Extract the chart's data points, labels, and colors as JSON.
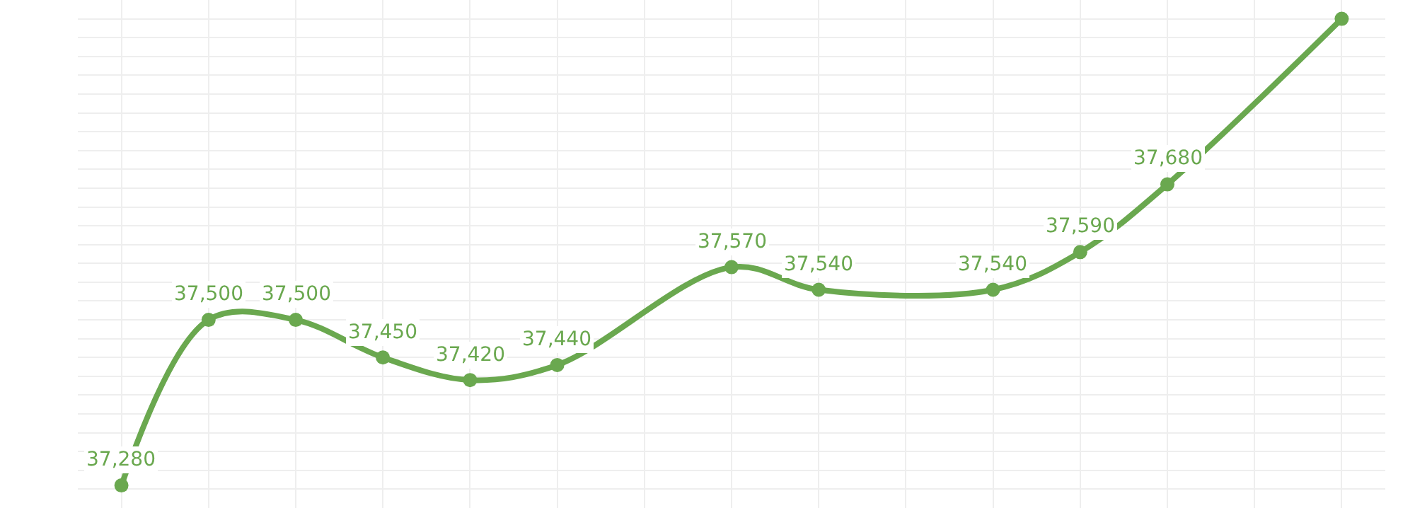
{
  "chart_data": {
    "type": "line",
    "categories": [
      null,
      null,
      null,
      null,
      null,
      null,
      null,
      null,
      null,
      null,
      null,
      null,
      null,
      null,
      null
    ],
    "series": [
      {
        "color": "#6aa84f",
        "values": [
          37280,
          37500,
          37500,
          37450,
          37420,
          37440,
          null,
          37570,
          37540,
          null,
          37540,
          37590,
          37680,
          null,
          37900
        ],
        "value_labels": [
          "37,280",
          "37,500",
          "37,500",
          "37,450",
          "37,420",
          "37,440",
          null,
          "37,570",
          "37,540",
          null,
          "37,540",
          "37,590",
          "37,680",
          null,
          null
        ]
      }
    ],
    "ylim": [
      37250,
      37925
    ],
    "yticks": [
      {
        "value": 37250,
        "label": null
      },
      {
        "value": 37275,
        "label": null
      },
      {
        "value": 37300,
        "label": null
      },
      {
        "value": 37325,
        "label": null
      },
      {
        "value": 37350,
        "label": null
      },
      {
        "value": 37375,
        "label": null
      },
      {
        "value": 37400,
        "label": null
      },
      {
        "value": 37425,
        "label": null
      },
      {
        "value": 37450,
        "label": null
      },
      {
        "value": 37475,
        "label": null
      },
      {
        "value": 37500,
        "label": null
      },
      {
        "value": 37525,
        "label": null
      },
      {
        "value": 37550,
        "label": null
      },
      {
        "value": 37575,
        "label": null
      },
      {
        "value": 37600,
        "label": null
      },
      {
        "value": 37625,
        "label": null
      },
      {
        "value": 37650,
        "label": null
      },
      {
        "value": 37675,
        "label": null
      },
      {
        "value": 37700,
        "label": null
      },
      {
        "value": 37725,
        "label": null
      },
      {
        "value": 37750,
        "label": null
      },
      {
        "value": 37775,
        "label": null
      },
      {
        "value": 37800,
        "label": null
      },
      {
        "value": 37825,
        "label": null
      },
      {
        "value": 37850,
        "label": null
      },
      {
        "value": 37875,
        "label": null
      },
      {
        "value": 37900,
        "label": null
      },
      {
        "value": 37925,
        "label": null
      }
    ],
    "grid": true,
    "marker": "circle",
    "line_style": "solid"
  }
}
